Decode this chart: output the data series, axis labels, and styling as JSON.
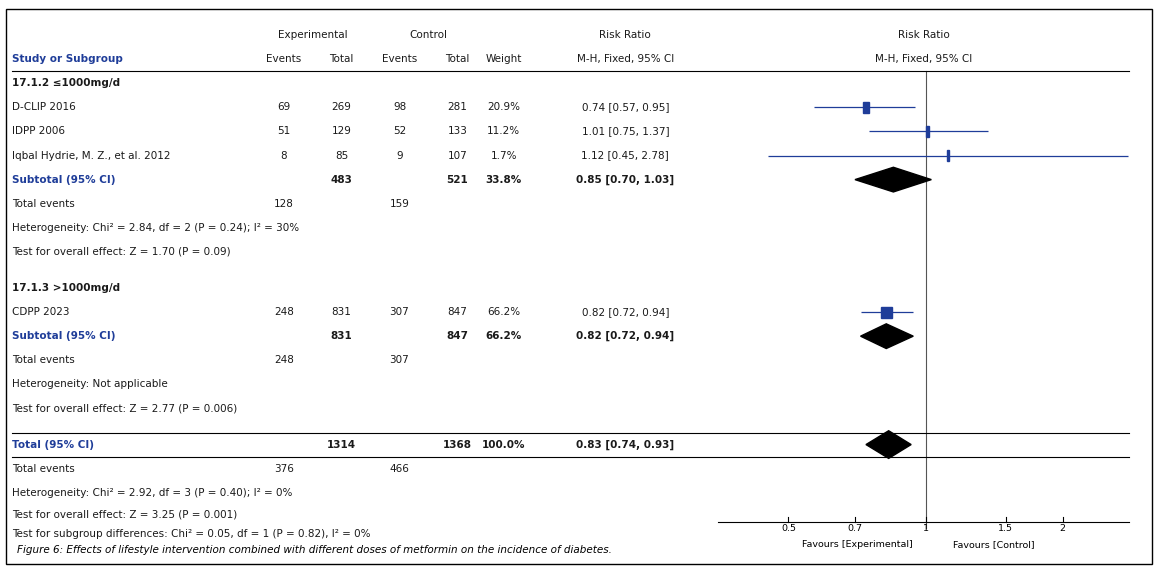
{
  "title": "Figure 6: Effects of lifestyle intervention combined with different doses of metformin on the incidence of diabetes.",
  "subgroup1_label": "17.1.2 ≤1000mg/d",
  "subgroup2_label": "17.1.3 >1000mg/d",
  "studies": [
    {
      "name": "D-CLIP 2016",
      "exp_events": 69,
      "exp_total": 269,
      "ctrl_events": 98,
      "ctrl_total": 281,
      "weight": "20.9%",
      "rr": "0.74 [0.57, 0.95]",
      "rr_val": 0.74,
      "ci_lo": 0.57,
      "ci_hi": 0.95,
      "group": 1
    },
    {
      "name": "IDPP 2006",
      "exp_events": 51,
      "exp_total": 129,
      "ctrl_events": 52,
      "ctrl_total": 133,
      "weight": "11.2%",
      "rr": "1.01 [0.75, 1.37]",
      "rr_val": 1.01,
      "ci_lo": 0.75,
      "ci_hi": 1.37,
      "group": 1
    },
    {
      "name": "Iqbal Hydrie, M. Z., et al. 2012",
      "exp_events": 8,
      "exp_total": 85,
      "ctrl_events": 9,
      "ctrl_total": 107,
      "weight": "1.7%",
      "rr": "1.12 [0.45, 2.78]",
      "rr_val": 1.12,
      "ci_lo": 0.45,
      "ci_hi": 2.78,
      "group": 1
    },
    {
      "name": "CDPP 2023",
      "exp_events": 248,
      "exp_total": 831,
      "ctrl_events": 307,
      "ctrl_total": 847,
      "weight": "66.2%",
      "rr": "0.82 [0.72, 0.94]",
      "rr_val": 0.82,
      "ci_lo": 0.72,
      "ci_hi": 0.94,
      "group": 2
    }
  ],
  "subtotal1": {
    "exp_total": 483,
    "ctrl_total": 521,
    "weight": "33.8%",
    "rr": "0.85 [0.70, 1.03]",
    "rr_val": 0.85,
    "ci_lo": 0.7,
    "ci_hi": 1.03,
    "exp_events": 128,
    "ctrl_events": 159
  },
  "subtotal2": {
    "exp_total": 831,
    "ctrl_total": 847,
    "weight": "66.2%",
    "rr": "0.82 [0.72, 0.94]",
    "rr_val": 0.82,
    "ci_lo": 0.72,
    "ci_hi": 0.94,
    "exp_events": 248,
    "ctrl_events": 307
  },
  "total": {
    "exp_total": 1314,
    "ctrl_total": 1368,
    "weight": "100.0%",
    "rr": "0.83 [0.74, 0.93]",
    "rr_val": 0.83,
    "ci_lo": 0.74,
    "ci_hi": 0.93,
    "exp_events": 376,
    "ctrl_events": 466
  },
  "heterogeneity1": "Heterogeneity: Chi² = 2.84, df = 2 (P = 0.24); I² = 30%",
  "overall_effect1": "Test for overall effect: Z = 1.70 (P = 0.09)",
  "heterogeneity2": "Heterogeneity: Not applicable",
  "overall_effect2": "Test for overall effect: Z = 2.77 (P = 0.006)",
  "heterogeneity_total": "Heterogeneity: Chi² = 2.92, df = 3 (P = 0.40); I² = 0%",
  "overall_effect_total": "Test for overall effect: Z = 3.25 (P = 0.001)",
  "subgroup_diff": "Test for subgroup differences: Chi² = 0.05, df = 1 (P = 0.82), I² = 0%",
  "x_ticks": [
    0.5,
    0.7,
    1,
    1.5,
    2
  ],
  "x_label_left": "Favours [Experimental]",
  "x_label_right": "Favours [Control]",
  "x_min": 0.35,
  "x_max": 2.8,
  "study_color": "#1f3d99",
  "square_color": "#1f3d99",
  "text_color": "#1a1a1a",
  "bold_color": "#1f3d99",
  "bg_color": "#ffffff"
}
